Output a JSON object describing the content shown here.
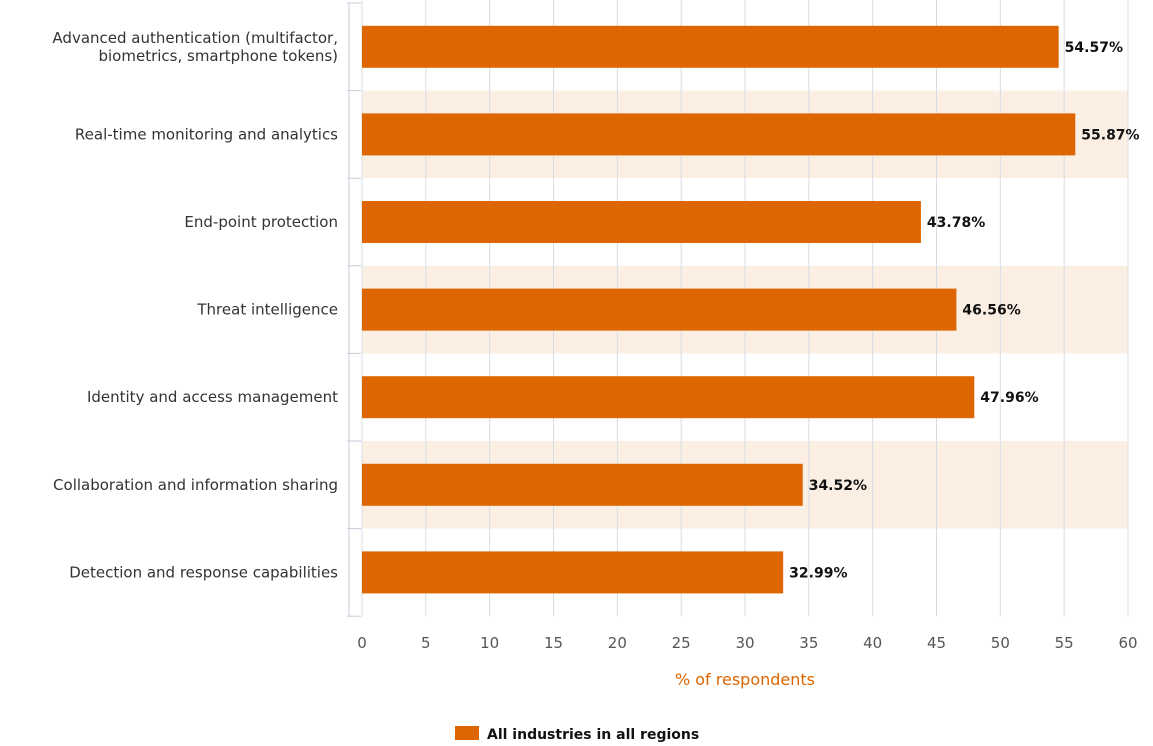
{
  "chart_data": {
    "type": "bar",
    "orientation": "horizontal",
    "categories": [
      [
        "Advanced authentication (multifactor,",
        "biometrics, smartphone tokens)"
      ],
      [
        "Real-time monitoring and analytics"
      ],
      [
        "End-point protection"
      ],
      [
        "Threat intelligence"
      ],
      [
        "Identity and access management"
      ],
      [
        "Collaboration and information sharing"
      ],
      [
        "Detection and response capabilities"
      ]
    ],
    "series": [
      {
        "name": "All industries in all regions",
        "values": [
          54.57,
          55.87,
          43.78,
          46.56,
          47.96,
          34.52,
          32.99
        ],
        "value_labels": [
          "54.57%",
          "55.87%",
          "43.78%",
          "46.56%",
          "47.96%",
          "34.52%",
          "32.99%"
        ]
      }
    ],
    "xlabel": "% of respondents",
    "xlim": [
      0,
      60
    ],
    "xticks": [
      "0",
      "5",
      "10",
      "15",
      "20",
      "25",
      "30",
      "35",
      "40",
      "45",
      "50",
      "55",
      "60"
    ],
    "grid": "vertical",
    "alternating_row_bands": true,
    "legend_position": "bottom-center",
    "colors": {
      "bar": "#dd6600",
      "band": "#fbefe4",
      "grid": "#d7dce4",
      "axis": "#c5cdd8",
      "xlabel": "#dd6600"
    }
  }
}
